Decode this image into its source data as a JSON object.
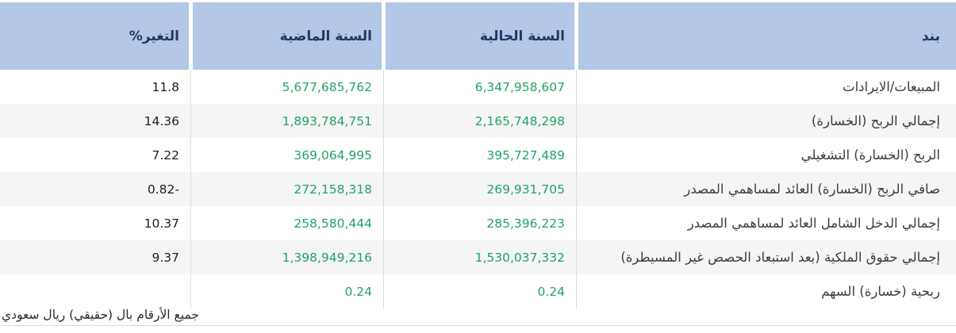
{
  "table": {
    "columns": [
      {
        "key": "item",
        "label": "بند"
      },
      {
        "key": "current_year",
        "label": "السنة الحالية"
      },
      {
        "key": "previous_year",
        "label": "السنة الماضية"
      },
      {
        "key": "change_pct",
        "label": "التغير%"
      }
    ],
    "rows": [
      {
        "item": "المبيعات/الايرادات",
        "current_year": "6,347,958,607",
        "previous_year": "5,677,685,762",
        "change_pct": "11.8"
      },
      {
        "item": "إجمالي الربح (الخسارة)",
        "current_year": "2,165,748,298",
        "previous_year": "1,893,784,751",
        "change_pct": "14.36"
      },
      {
        "item": "الربح (الخسارة) التشغيلي",
        "current_year": "395,727,489",
        "previous_year": "369,064,995",
        "change_pct": "7.22"
      },
      {
        "item": "صافي الربح (الخسارة) العائد لمساهمي المصدر",
        "current_year": "269,931,705",
        "previous_year": "272,158,318",
        "change_pct": "-0.82"
      },
      {
        "item": "إجمالي الدخل الشامل العائد لمساهمي المصدر",
        "current_year": "285,396,223",
        "previous_year": "258,580,444",
        "change_pct": "10.37"
      },
      {
        "item": "إجمالي حقوق الملكية (بعد استبعاد الحصص غير المسيطرة)",
        "current_year": "1,530,037,332",
        "previous_year": "1,398,949,216",
        "change_pct": "9.37"
      },
      {
        "item": "ربحية (خسارة) السهم",
        "current_year": "0.24",
        "previous_year": "0.24",
        "change_pct": ""
      }
    ]
  },
  "footer": {
    "note": "جميع الأرقام بال (حقيقي) ريال سعودي"
  },
  "colors": {
    "header_background": "#b4c7e7",
    "header_text": "#1f3864",
    "value_green": "#21a366",
    "alt_row_background": "#f5f5f6",
    "divider": "#dcdcdc"
  }
}
